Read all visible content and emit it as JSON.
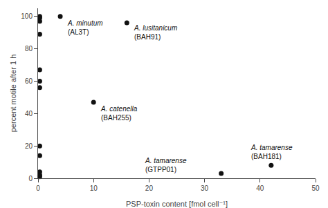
{
  "chart_data": {
    "type": "scatter",
    "x": [
      0.3,
      0.3,
      0.3,
      0.3,
      0.3,
      0.3,
      0.3,
      0.3,
      0.3,
      0.3,
      0.3,
      0.3,
      4,
      10,
      16,
      33,
      42
    ],
    "y": [
      1,
      2,
      4,
      14,
      20,
      56,
      60,
      67,
      89,
      97,
      99,
      100,
      100,
      47,
      96,
      3,
      8
    ],
    "color": "#111111",
    "xlabel": "PSP-toxin content [fmol cell⁻¹]",
    "ylabel": "percent motile after 1 h",
    "xlim": [
      0,
      50
    ],
    "ylim": [
      0,
      105
    ],
    "xticks": [
      0,
      10,
      20,
      30,
      40,
      50
    ],
    "yticks": [
      0,
      20,
      40,
      60,
      80,
      100
    ],
    "grid": false,
    "annotations": [
      {
        "lines": [
          "A. minutum",
          "(AL3T)"
        ],
        "x": 5,
        "y": 99
      },
      {
        "lines": [
          "A. catenella",
          "(BAH255)"
        ],
        "x": 11,
        "y": 46
      },
      {
        "lines": [
          "A. lusitanicum",
          "(BAH91)"
        ],
        "x": 17,
        "y": 96
      },
      {
        "lines": [
          "A. tamarense",
          "(GTPP01)"
        ],
        "x": 19,
        "y": 14
      },
      {
        "lines": [
          "A. tamarense",
          "(BAH181)"
        ],
        "x": 38,
        "y": 22
      }
    ]
  }
}
